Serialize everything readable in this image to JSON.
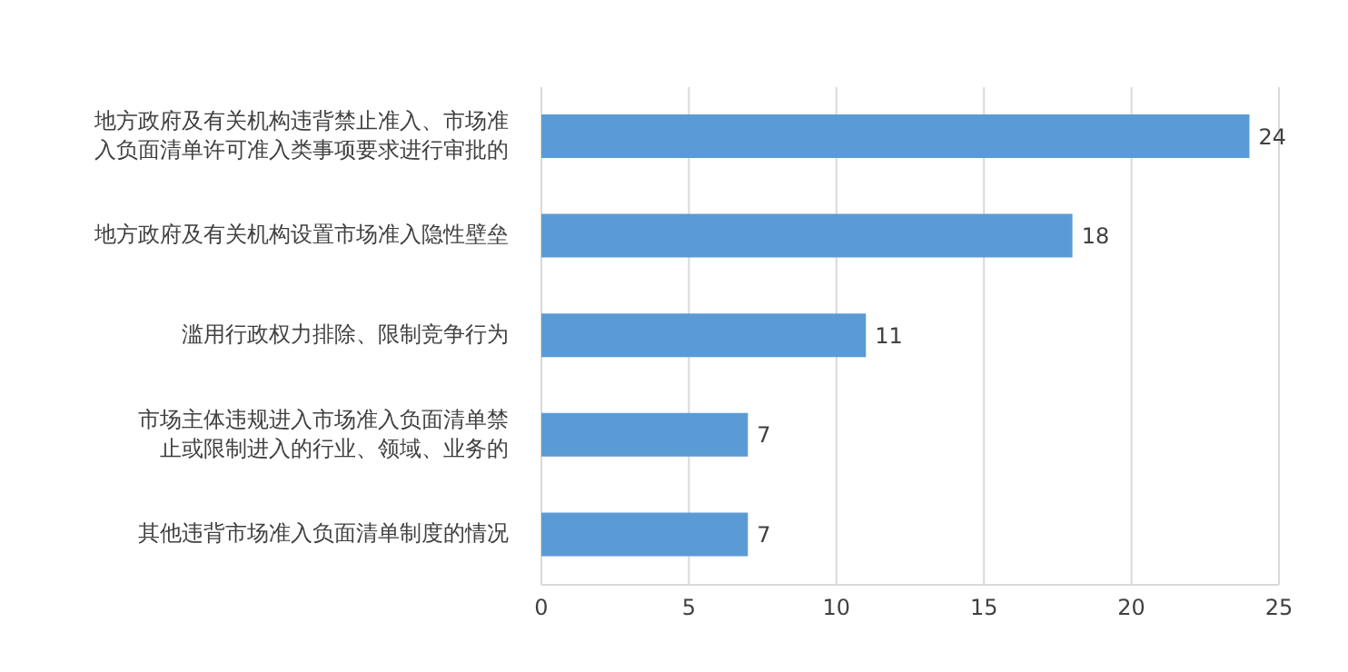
{
  "chart_data": {
    "type": "bar",
    "orientation": "horizontal",
    "categories": [
      "地方政府及有关机构违背禁止准入、市场准入负面清单许可准入类事项要求进行审批的",
      "地方政府及有关机构设置市场准入隐性壁垒",
      "滥用行政权力排除、限制竞争行为",
      "市场主体违规进入市场准入负面清单禁止或限制进入的行业、领域、业务的",
      "其他违背市场准入负面清单制度的情况"
    ],
    "values": [
      24,
      18,
      11,
      7,
      7
    ],
    "color": "#5b9bd5",
    "xlim": [
      0,
      25
    ],
    "xticks": [
      0,
      5,
      10,
      15,
      20,
      25
    ],
    "grid": "x",
    "data_labels": true
  }
}
